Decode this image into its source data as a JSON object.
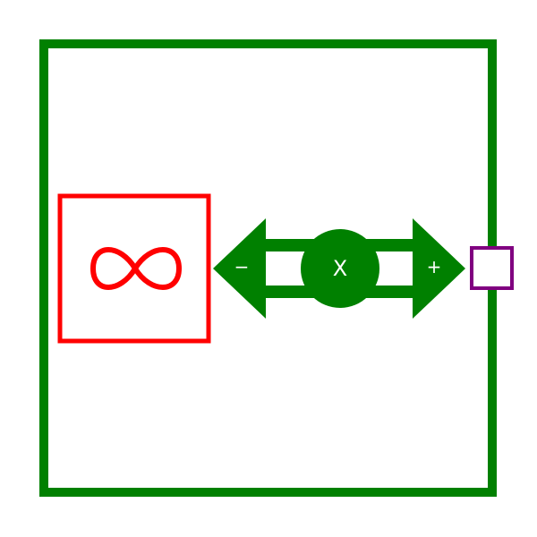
{
  "colors": {
    "frame": "#008000",
    "source_block": "#ff0000",
    "port": "#800080",
    "text": "#ffffff",
    "background": "#ffffff"
  },
  "icons": {
    "source_block": "infinity-icon",
    "connector": "double-arrow-icon",
    "junction": "circle-icon",
    "port": "square-icon"
  },
  "connector": {
    "minus_label": "−",
    "plus_label": "+",
    "center_label": "X"
  }
}
